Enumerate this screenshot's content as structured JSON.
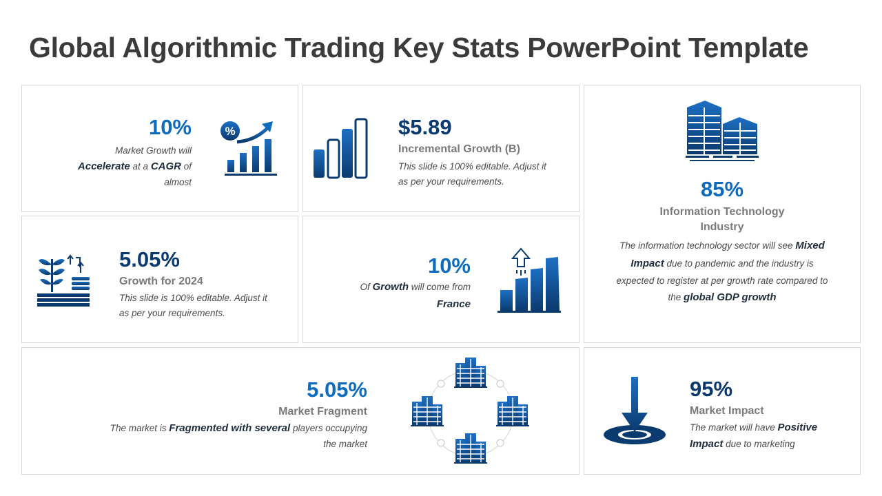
{
  "title": "Global Algorithmic Trading Key Stats PowerPoint Template",
  "colors": {
    "primary_blue": "#0f6cbd",
    "navy": "#0b3a6e",
    "gray_text": "#7a7a7a",
    "border": "#d6d6d6"
  },
  "cards": {
    "c1": {
      "value": "10%",
      "desc_a": "Market Growth will",
      "desc_b_bold1": "Accelerate",
      "desc_b_mid": " at a ",
      "desc_b_bold2": "CAGR",
      "desc_b_end": " of",
      "desc_c": "almost",
      "icon": "percent-growth-chart-icon"
    },
    "c2": {
      "value": "$5.89",
      "subtitle": "Incremental Growth (B)",
      "desc_a": "This slide is 100% editable. Adjust it",
      "desc_b": "as per your requirements.",
      "icon": "bar-chart-icon"
    },
    "c3": {
      "value": "85%",
      "subtitle_a": "Information Technology",
      "subtitle_b": "Industry",
      "d1_a": "The information technology sector will see ",
      "d1_b": "Mixed",
      "d2_a": "Impact",
      "d2_b": " due to pandemic and the industry is",
      "d3": "expected to register at per growth rate compared to",
      "d4_a": "the ",
      "d4_b": "global GDP growth",
      "icon": "office-buildings-icon"
    },
    "c4": {
      "value": "5.05%",
      "subtitle": "Growth for 2024",
      "desc_a": "This slide is 100% editable. Adjust it",
      "desc_b": "as per your requirements.",
      "icon": "plant-growth-coins-icon"
    },
    "c5": {
      "value": "10%",
      "d1_a": "Of ",
      "d1_b": "Growth",
      "d1_c": " will come from",
      "d2": "France",
      "icon": "rising-bars-arrow-icon"
    },
    "c6": {
      "value": "5.05%",
      "subtitle": "Market Fragment",
      "d1_a": "The market is ",
      "d1_b": "Fragmented with several",
      "d1_c": " players occupying",
      "d2": "the market",
      "icon": "buildings-network-icon"
    },
    "c7": {
      "value": "95%",
      "subtitle": "Market Impact",
      "d1_a": "The market will have ",
      "d1_b": "Positive",
      "d2_a": "Impact",
      "d2_b": " due to marketing",
      "icon": "target-impact-arrow-icon"
    }
  }
}
